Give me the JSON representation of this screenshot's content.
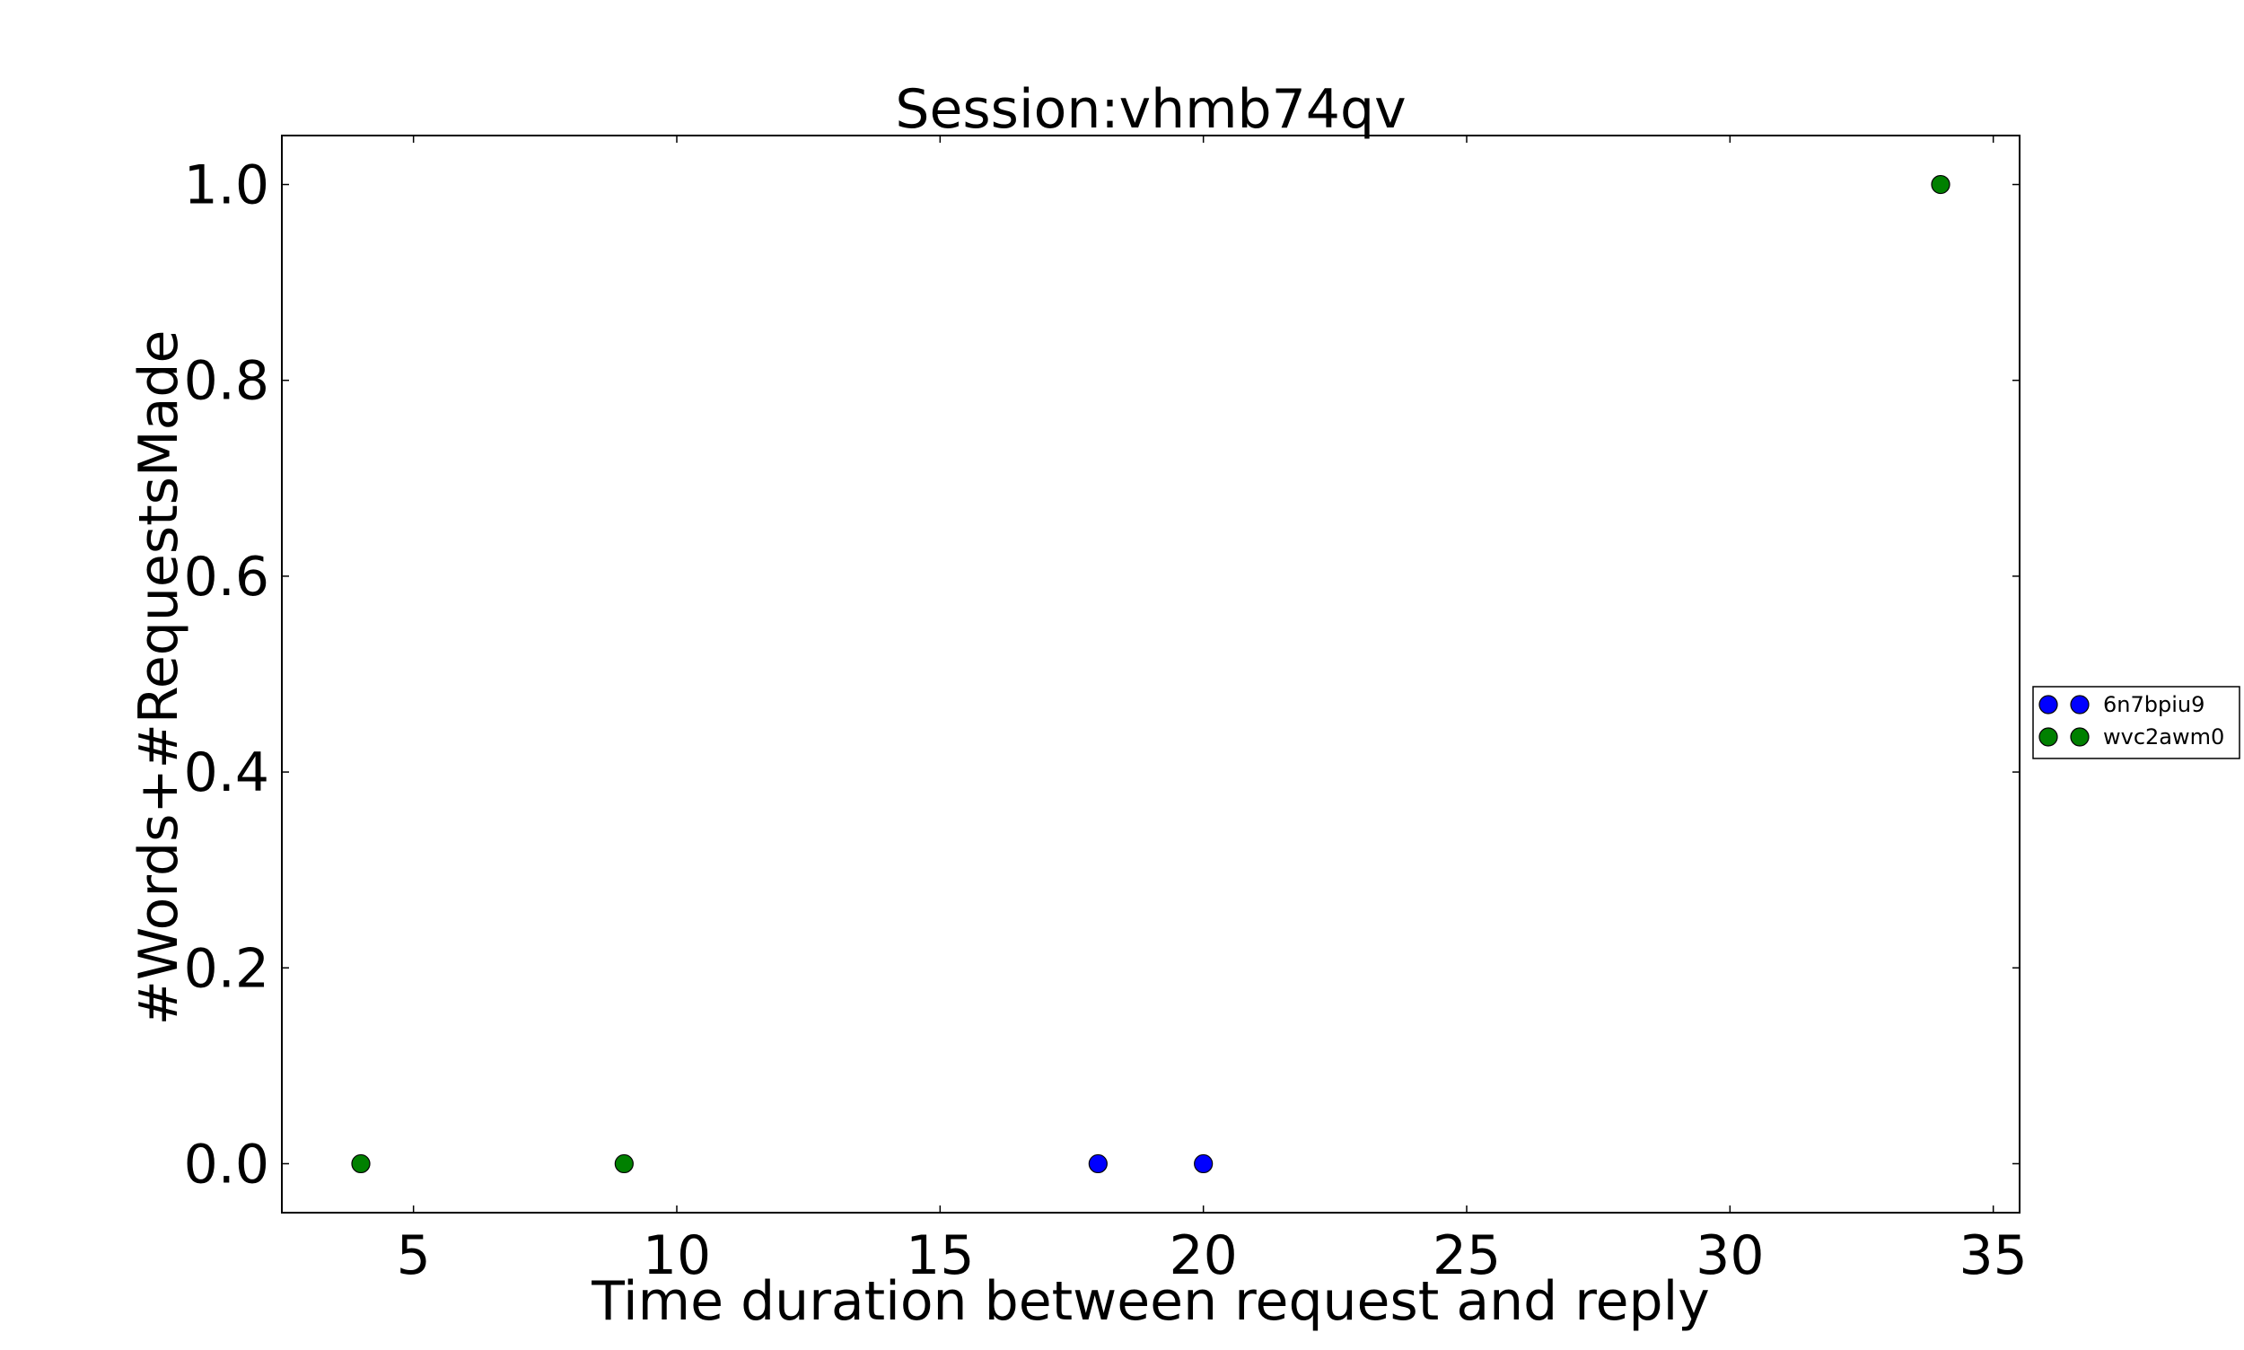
{
  "chart_data": {
    "type": "scatter",
    "title": "Session:vhmb74qv",
    "xlabel": "Time duration between request and reply",
    "ylabel": "#Words+#RequestsMade",
    "xlim": [
      2.5,
      35.5
    ],
    "ylim": [
      -0.05,
      1.05
    ],
    "xticks": [
      5,
      10,
      15,
      20,
      25,
      30,
      35
    ],
    "yticks": [
      0.0,
      0.2,
      0.4,
      0.6,
      0.8,
      1.0
    ],
    "xtick_labels": [
      "5",
      "10",
      "15",
      "20",
      "25",
      "30",
      "35"
    ],
    "ytick_labels": [
      "0.0",
      "0.2",
      "0.4",
      "0.6",
      "0.8",
      "1.0"
    ],
    "grid": false,
    "legend_position": "outside-right",
    "series": [
      {
        "name": "6n7bpiu9",
        "color": "#0000ff",
        "marker": "circle",
        "points": [
          [
            18,
            0.0
          ],
          [
            20,
            0.0
          ]
        ]
      },
      {
        "name": "wvc2awm0",
        "color": "#008000",
        "marker": "circle",
        "points": [
          [
            4,
            0.0
          ],
          [
            9,
            0.0
          ],
          [
            34,
            1.0
          ]
        ]
      }
    ]
  }
}
